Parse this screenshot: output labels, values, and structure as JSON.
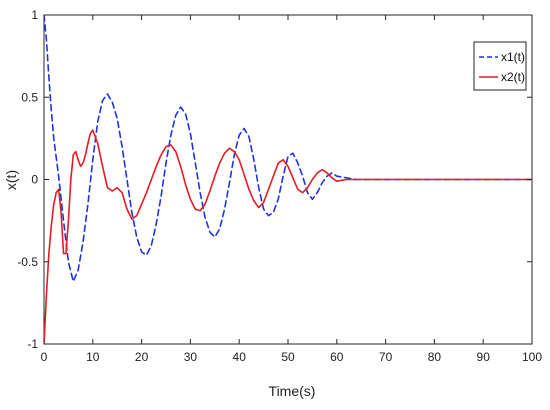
{
  "chart_data": {
    "type": "line",
    "title": "",
    "xlabel": "Time(s)",
    "ylabel": "x(t)",
    "xlim": [
      0,
      100
    ],
    "ylim": [
      -1,
      1
    ],
    "grid": false,
    "legend_position": "top-right",
    "x_ticks": [
      0,
      10,
      20,
      30,
      40,
      50,
      60,
      70,
      80,
      90,
      100
    ],
    "x_tick_labels": [
      "0",
      "10",
      "20",
      "30",
      "40",
      "50",
      "60",
      "70",
      "80",
      "90",
      "100"
    ],
    "y_ticks": [
      -1,
      -0.5,
      0,
      0.5,
      1
    ],
    "y_tick_labels": [
      "-1",
      "-0.5",
      "0",
      "0.5",
      "1"
    ],
    "series": [
      {
        "name": "x1(t)",
        "color": "#1f33e6",
        "style": "dashed",
        "x": [
          0,
          0.5,
          1,
          1.5,
          2,
          3,
          4,
          5,
          6,
          7,
          8,
          9,
          10,
          11,
          12,
          13,
          14,
          15,
          16,
          17,
          18,
          19,
          20,
          21,
          22,
          23,
          24,
          25,
          26,
          27,
          28,
          29,
          30,
          31,
          32,
          33,
          34,
          35,
          36,
          37,
          38,
          39,
          40,
          41,
          42,
          43,
          44,
          45,
          46,
          47,
          48,
          49,
          50,
          51,
          52,
          53,
          54,
          55,
          56,
          57,
          58,
          59,
          60,
          62,
          64,
          66,
          70,
          75,
          80,
          90,
          100
        ],
        "y": [
          1.0,
          0.85,
          0.62,
          0.42,
          0.25,
          0.02,
          -0.25,
          -0.5,
          -0.62,
          -0.55,
          -0.38,
          -0.15,
          0.12,
          0.35,
          0.48,
          0.52,
          0.47,
          0.37,
          0.2,
          0.0,
          -0.2,
          -0.35,
          -0.44,
          -0.46,
          -0.4,
          -0.27,
          -0.1,
          0.1,
          0.27,
          0.39,
          0.44,
          0.4,
          0.28,
          0.1,
          -0.08,
          -0.23,
          -0.32,
          -0.35,
          -0.3,
          -0.18,
          -0.02,
          0.15,
          0.27,
          0.31,
          0.26,
          0.12,
          -0.05,
          -0.18,
          -0.22,
          -0.2,
          -0.12,
          0.02,
          0.14,
          0.16,
          0.1,
          0.02,
          -0.08,
          -0.12,
          -0.08,
          -0.02,
          0.02,
          0.04,
          0.02,
          0.01,
          0.0,
          0.0,
          0.0,
          0.0,
          0.0,
          0.0,
          0.0
        ]
      },
      {
        "name": "x2(t)",
        "color": "#e61c23",
        "style": "solid",
        "x": [
          0,
          0.5,
          1,
          1.5,
          2,
          2.5,
          3,
          3.5,
          4,
          4.5,
          5,
          5.5,
          6,
          6.5,
          7,
          7.5,
          8,
          8.5,
          9,
          9.5,
          10,
          11,
          12,
          13,
          14,
          15,
          16,
          17,
          18,
          19,
          20,
          21,
          22,
          23,
          24,
          25,
          26,
          27,
          28,
          29,
          30,
          31,
          32,
          33,
          34,
          35,
          36,
          37,
          38,
          39,
          40,
          41,
          42,
          43,
          44,
          45,
          46,
          47,
          48,
          49,
          50,
          51,
          52,
          53,
          54,
          55,
          56,
          57,
          58,
          59,
          60,
          62,
          64,
          66,
          70,
          75,
          80,
          90,
          100
        ],
        "y": [
          -1.0,
          -0.7,
          -0.45,
          -0.28,
          -0.15,
          -0.08,
          -0.06,
          -0.2,
          -0.45,
          -0.45,
          -0.25,
          0.0,
          0.15,
          0.17,
          0.12,
          0.08,
          0.1,
          0.15,
          0.22,
          0.28,
          0.3,
          0.22,
          0.08,
          -0.05,
          -0.07,
          -0.05,
          -0.08,
          -0.18,
          -0.24,
          -0.22,
          -0.15,
          -0.08,
          0.0,
          0.08,
          0.15,
          0.2,
          0.21,
          0.17,
          0.08,
          -0.03,
          -0.12,
          -0.18,
          -0.19,
          -0.15,
          -0.07,
          0.02,
          0.1,
          0.16,
          0.19,
          0.17,
          0.12,
          0.03,
          -0.06,
          -0.13,
          -0.17,
          -0.14,
          -0.06,
          0.02,
          0.1,
          0.12,
          0.08,
          0.01,
          -0.06,
          -0.08,
          -0.05,
          0.0,
          0.04,
          0.06,
          0.04,
          0.01,
          -0.01,
          0.0,
          0.0,
          0.0,
          0.0,
          0.0,
          0.0,
          0.0,
          0.0
        ]
      }
    ]
  }
}
